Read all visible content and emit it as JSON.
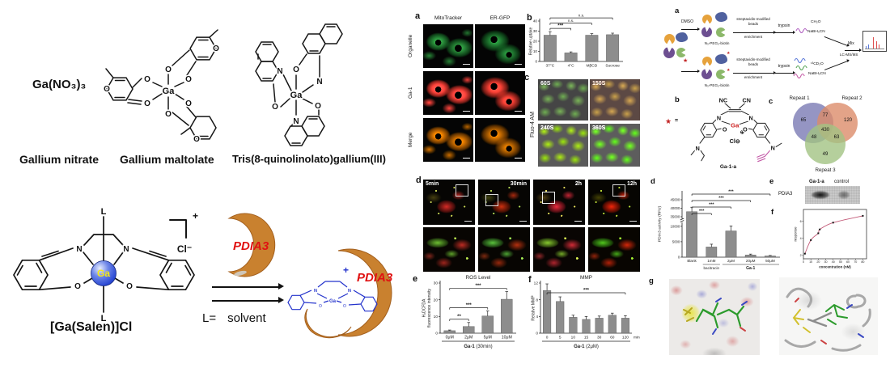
{
  "colors": {
    "bar_gray": "#8d8d8d",
    "pdia3_red": "#e01212",
    "blob_orange": "#c9812f",
    "complex_blue": "#2433cc",
    "ga_ball_blue": "#2f4fd4",
    "venn_r1": "#8283b8",
    "venn_r2": "#dc8c6a",
    "venn_r3": "#a3c383",
    "curve_pink": "#c35a78",
    "star_red": "#c22525",
    "fluor_green": "#3ddc5f",
    "fluor_red": "#e02828"
  },
  "figure": {
    "left": {
      "nitrate_formula": "Ga(NO₃)₃",
      "nitrate_name": "Gallium nitrate",
      "maltolate_name": "Gallium maltolate",
      "quinolinolate_name": "Tris(8-quinolinolato)gallium(III)",
      "salen_name": "[Ga(Salen)]Cl",
      "charge_plus": "+",
      "chloride": "Cl⁻",
      "l_equals": "L=",
      "solvent": "solvent",
      "pdia3": "PDIA3",
      "product_plus": "+",
      "atoms": {
        "ga": "Ga",
        "o": "O",
        "n": "N",
        "l": "L"
      }
    },
    "middle": {
      "a": {
        "letter": "a",
        "col1": "MitoTracker",
        "col2": "ER-GFP",
        "rows": [
          "Organelle",
          "Ga-1",
          "Merge"
        ]
      },
      "b": {
        "letter": "b"
      },
      "c": {
        "letter": "c",
        "side": "Fluo-4 AM",
        "times": [
          "60S",
          "150S",
          "240S",
          "360S"
        ]
      },
      "d": {
        "letter": "d",
        "times": [
          "5min",
          "30min",
          "2h",
          "12h"
        ]
      },
      "e": {
        "letter": "e"
      },
      "f": {
        "letter": "f"
      }
    },
    "right": {
      "a": {
        "letter": "a",
        "dmso": "DMSO",
        "star": "★",
        "biotin": "N₃-PEG₃-biotin",
        "beads1": "streptavidin-modified",
        "beads2": "beads",
        "enrichment": "enrichment",
        "trypsin": "trypsin",
        "light1": "CH₂O",
        "light2": "NaBH₃CN",
        "heavy1": "¹³CD₂O",
        "heavy2": "NaBH₃CN",
        "mix": "Mix",
        "lcms": "LC-MS/MS"
      },
      "b": {
        "letter": "b",
        "star": "★",
        "equals": "=",
        "nc": "NC",
        "cn": "CN",
        "ga": "Ga",
        "plus": "⊕",
        "cl": "Cl⊖",
        "n": "N",
        "o": "O",
        "name": "Ga-1-a"
      },
      "c": {
        "letter": "c",
        "r1": "Repeat 1",
        "r2": "Repeat 2",
        "r3": "Repeat 3",
        "n_r1": "65",
        "n_r1r2": "77",
        "n_r2": "120",
        "n_r1r3": "48",
        "n_all": "430",
        "n_r2r3": "63",
        "n_r3": "49"
      },
      "d": {
        "letter": "d"
      },
      "e": {
        "letter": "e",
        "lane1": "Ga-1-a",
        "lane2": "control",
        "protein": "PDIA3"
      },
      "f": {
        "letter": "f"
      },
      "g": {
        "letter": "g"
      }
    }
  },
  "chart_data": [
    {
      "id": "uptake",
      "type": "bar",
      "categories": [
        "37°C",
        "4°C",
        "MβCD",
        "Sucrose"
      ],
      "values": [
        26,
        8.5,
        26,
        26.5
      ],
      "errors": [
        3.5,
        1,
        1.5,
        1.5
      ],
      "ylabel": "Relative uptake",
      "ylim": [
        0,
        40
      ],
      "yticks": [
        0,
        10,
        20,
        30,
        40
      ],
      "grid": false,
      "significance": [
        {
          "from": 0,
          "to": 1,
          "label": "***",
          "level": 0
        },
        {
          "from": 0,
          "to": 2,
          "label": "n.s.",
          "level": 1
        },
        {
          "from": 0,
          "to": 3,
          "label": "n.s.",
          "level": 2
        }
      ]
    },
    {
      "id": "ros",
      "type": "bar",
      "title": "ROS Level",
      "categories": [
        "0μM",
        "2μM",
        "5μM",
        "10μM"
      ],
      "values": [
        1.5,
        4,
        10.3,
        20.3
      ],
      "errors": [
        0.4,
        2.4,
        3,
        4.6
      ],
      "ylabel_lines": [
        "H₂DCFDA",
        "fluorescence intensity"
      ],
      "xlabel_bold": "Ga-1",
      "xlabel_rest": " (30min)",
      "ylim": [
        0,
        30
      ],
      "yticks": [
        0,
        10,
        20,
        30
      ],
      "significance": [
        {
          "from": 0,
          "to": 1,
          "label": "**",
          "level": 0
        },
        {
          "from": 0,
          "to": 2,
          "label": "***",
          "level": 1
        },
        {
          "from": 0,
          "to": 3,
          "label": "***",
          "level": 2
        }
      ]
    },
    {
      "id": "mmp",
      "type": "bar",
      "title": "MMP",
      "categories": [
        "0",
        "5",
        "10",
        "15",
        "30",
        "60",
        "120"
      ],
      "x_suffix": "min",
      "values": [
        10.2,
        7.6,
        3.8,
        3.3,
        3.6,
        4.3,
        3.6
      ],
      "errors": [
        1.6,
        1.1,
        0.5,
        0.7,
        0.5,
        0.5,
        0.6
      ],
      "ylabel": "Relative MMP",
      "xlabel_bold": "Ga-1",
      "xlabel_rest": " (2μM)",
      "ylim": [
        0,
        12
      ],
      "yticks": [
        0,
        4,
        8,
        12
      ],
      "significance": [
        {
          "from": 0,
          "to": 6,
          "label": "***",
          "level": 0
        }
      ]
    },
    {
      "id": "pdia3_activity",
      "type": "bar-broken",
      "categories": [
        "Blank",
        "1mM",
        "2μM",
        "20μM",
        "50μM"
      ],
      "values": [
        38000,
        3300,
        8500,
        700,
        400
      ],
      "errors": [
        2600,
        900,
        1600,
        300,
        150
      ],
      "ylabel": "PDIA3 activity (RFU)",
      "yticks_low": [
        0,
        5000,
        10000
      ],
      "yticks_high": [
        35000,
        40000,
        45000
      ],
      "sub_label": {
        "index": 1,
        "text": "bacitracin"
      },
      "group_label": {
        "from": 2,
        "to": 4,
        "text": "Ga-1"
      },
      "significance": [
        {
          "from": 0,
          "to": 1,
          "label": "***",
          "level": 0
        },
        {
          "from": 0,
          "to": 2,
          "label": "***",
          "level": 1
        },
        {
          "from": 0,
          "to": 3,
          "label": "***",
          "level": 2
        },
        {
          "from": 0,
          "to": 4,
          "label": "***",
          "level": 3
        }
      ]
    },
    {
      "id": "binding",
      "type": "scatter",
      "x": [
        2,
        10,
        20,
        22,
        40,
        80
      ],
      "y": [
        2.2,
        3.8,
        4.6,
        5.05,
        5.85,
        6.65
      ],
      "xlabel": "concentration (nM)",
      "ylabel": "response",
      "xticks": [
        0,
        10,
        20,
        30,
        40,
        50,
        60,
        70,
        80
      ],
      "yticks": [
        2,
        4,
        6
      ],
      "xlim": [
        0,
        85
      ],
      "ylim": [
        1.6,
        7.4
      ],
      "line_color": "#c35a78"
    }
  ]
}
